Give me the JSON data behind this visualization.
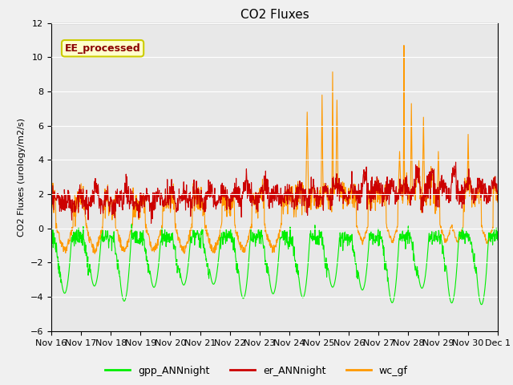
{
  "title": "CO2 Fluxes",
  "ylabel": "CO2 Fluxes (urology/m2/s)",
  "ylim": [
    -6,
    12
  ],
  "yticks": [
    -6,
    -4,
    -2,
    0,
    2,
    4,
    6,
    8,
    10,
    12
  ],
  "xtick_labels": [
    "Nov 16",
    "Nov 17",
    "Nov 18",
    "Nov 19",
    "Nov 20",
    "Nov 21",
    "Nov 22",
    "Nov 23",
    "Nov 24",
    "Nov 25",
    "Nov 26",
    "Nov 27",
    "Nov 28",
    "Nov 29",
    "Nov 30",
    "Dec 1"
  ],
  "series": {
    "gpp_ANNnight": {
      "color": "#00ee00",
      "linewidth": 0.8
    },
    "er_ANNnight": {
      "color": "#cc0000",
      "linewidth": 0.8
    },
    "wc_gf": {
      "color": "#ff9900",
      "linewidth": 0.8
    }
  },
  "annotation": {
    "text": "EE_processed",
    "fontsize": 9,
    "color": "#8B0000",
    "bbox_facecolor": "#ffffcc",
    "bbox_edgecolor": "#cccc00"
  },
  "fig_facecolor": "#f0f0f0",
  "ax_facecolor": "#e8e8e8",
  "legend_labels": [
    "gpp_ANNnight",
    "er_ANNnight",
    "wc_gf"
  ],
  "legend_colors": [
    "#00ee00",
    "#cc0000",
    "#ff9900"
  ]
}
